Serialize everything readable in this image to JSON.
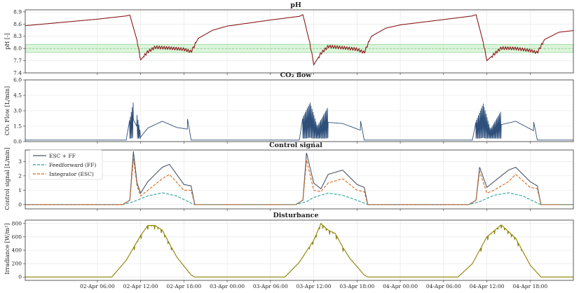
{
  "chart_data": [
    {
      "type": "line",
      "title": "pH",
      "ylabel": "pH [-]",
      "ylim": [
        7.4,
        8.95
      ],
      "yticks": [
        "7.4",
        "7.7",
        "8.0",
        "8.3",
        "8.6",
        "8.9"
      ],
      "reference_band": {
        "lower": 7.9,
        "upper": 8.1,
        "center": 8.0,
        "color": "#9be39b"
      },
      "series": [
        {
          "color": "#8b1a1a",
          "points": [
            [
              "2024-04-01 20:00",
              8.56
            ],
            [
              "2024-04-02 06:00",
              8.72
            ],
            [
              "2024-04-02 10:00",
              8.8
            ],
            [
              "2024-04-02 10:30",
              8.82
            ],
            [
              "2024-04-02 11:30",
              8.2
            ],
            [
              "2024-04-02 12:00",
              7.72
            ],
            [
              "2024-04-02 13:00",
              7.92
            ],
            [
              "2024-04-02 14:00",
              8.03
            ],
            [
              "2024-04-02 16:00",
              8.01
            ],
            [
              "2024-04-02 18:00",
              7.98
            ],
            [
              "2024-04-02 19:00",
              7.92
            ],
            [
              "2024-04-02 20:00",
              8.25
            ],
            [
              "2024-04-02 22:00",
              8.45
            ],
            [
              "2024-04-03 00:00",
              8.55
            ],
            [
              "2024-04-03 06:00",
              8.7
            ],
            [
              "2024-04-03 10:00",
              8.79
            ],
            [
              "2024-04-03 10:30",
              8.83
            ],
            [
              "2024-04-03 11:30",
              8.1
            ],
            [
              "2024-04-03 12:00",
              7.6
            ],
            [
              "2024-04-03 13:00",
              7.88
            ],
            [
              "2024-04-03 14:00",
              8.05
            ],
            [
              "2024-04-03 16:00",
              8.02
            ],
            [
              "2024-04-03 18:00",
              7.98
            ],
            [
              "2024-04-03 19:00",
              7.9
            ],
            [
              "2024-04-03 20:00",
              8.3
            ],
            [
              "2024-04-03 22:00",
              8.5
            ],
            [
              "2024-04-04 00:00",
              8.58
            ],
            [
              "2024-04-04 06:00",
              8.71
            ],
            [
              "2024-04-04 10:00",
              8.8
            ],
            [
              "2024-04-04 10:30",
              8.83
            ],
            [
              "2024-04-04 11:30",
              8.15
            ],
            [
              "2024-04-04 12:00",
              7.7
            ],
            [
              "2024-04-04 13:00",
              7.86
            ],
            [
              "2024-04-04 14:00",
              8.01
            ],
            [
              "2024-04-04 16:00",
              8.0
            ],
            [
              "2024-04-04 18:00",
              7.95
            ],
            [
              "2024-04-04 19:00",
              7.9
            ],
            [
              "2024-04-04 20:00",
              8.22
            ],
            [
              "2024-04-04 22:00",
              8.4
            ],
            [
              "2024-04-05 00:00",
              8.44
            ]
          ]
        }
      ]
    },
    {
      "type": "line",
      "title": "CO₂ flow",
      "ylabel": "CO₂ Flow [L/min]",
      "ylim": [
        0,
        6.0
      ],
      "yticks": [
        "0.0",
        "1.5",
        "3.0",
        "4.5",
        "6.0"
      ],
      "series": [
        {
          "color": "#2e4f7a",
          "points": [
            [
              "2024-04-01 20:00",
              0.15
            ],
            [
              "2024-04-02 10:00",
              0.15
            ],
            [
              "2024-04-02 10:30",
              2.2
            ],
            [
              "2024-04-02 11:00",
              3.9
            ],
            [
              "2024-04-02 11:30",
              2.6
            ],
            [
              "2024-04-02 12:00",
              0.8
            ],
            [
              "2024-04-02 13:00",
              2.4
            ],
            [
              "2024-04-02 15:00",
              3.6
            ],
            [
              "2024-04-02 17:00",
              2.5
            ],
            [
              "2024-04-02 18:30",
              2.2
            ],
            [
              "2024-04-02 19:00",
              0.15
            ],
            [
              "2024-04-03 10:00",
              0.15
            ],
            [
              "2024-04-03 10:30",
              2.4
            ],
            [
              "2024-04-03 11:30",
              3.8
            ],
            [
              "2024-04-03 12:30",
              1.5
            ],
            [
              "2024-04-03 14:00",
              3.4
            ],
            [
              "2024-04-03 16:00",
              3.2
            ],
            [
              "2024-04-03 18:30",
              2.0
            ],
            [
              "2024-04-03 19:00",
              0.15
            ],
            [
              "2024-04-04 10:00",
              0.15
            ],
            [
              "2024-04-04 10:30",
              2.0
            ],
            [
              "2024-04-04 11:30",
              3.7
            ],
            [
              "2024-04-04 12:30",
              1.2
            ],
            [
              "2024-04-04 14:00",
              3.0
            ],
            [
              "2024-04-04 16:00",
              3.6
            ],
            [
              "2024-04-04 18:30",
              1.9
            ],
            [
              "2024-04-04 19:00",
              0.15
            ],
            [
              "2024-04-05 00:00",
              0.15
            ]
          ]
        }
      ]
    },
    {
      "type": "line",
      "title": "Control signal",
      "ylabel": "Control signal [L/min]",
      "ylim": [
        -0.3,
        3.8
      ],
      "yticks": [
        "0",
        "1",
        "2",
        "3"
      ],
      "legend": "top-left",
      "series": [
        {
          "name": "ESC + FF",
          "color": "#4a5568",
          "dash": "solid",
          "points": [
            [
              "2024-04-01 20:00",
              0
            ],
            [
              "2024-04-02 09:30",
              0
            ],
            [
              "2024-04-02 10:30",
              0.3
            ],
            [
              "2024-04-02 11:00",
              3.7
            ],
            [
              "2024-04-02 11:30",
              1.5
            ],
            [
              "2024-04-02 12:00",
              0.8
            ],
            [
              "2024-04-02 13:00",
              1.6
            ],
            [
              "2024-04-02 15:00",
              2.6
            ],
            [
              "2024-04-02 16:00",
              2.8
            ],
            [
              "2024-04-02 18:00",
              1.4
            ],
            [
              "2024-04-02 19:00",
              1.3
            ],
            [
              "2024-04-02 19:30",
              0
            ],
            [
              "2024-04-03 09:30",
              0
            ],
            [
              "2024-04-03 10:30",
              0.3
            ],
            [
              "2024-04-03 11:00",
              3.6
            ],
            [
              "2024-04-03 12:00",
              1.5
            ],
            [
              "2024-04-03 13:00",
              1.1
            ],
            [
              "2024-04-03 14:00",
              2.1
            ],
            [
              "2024-04-03 16:00",
              2.4
            ],
            [
              "2024-04-03 18:00",
              1.4
            ],
            [
              "2024-04-03 19:00",
              1.2
            ],
            [
              "2024-04-03 19:30",
              0
            ],
            [
              "2024-04-04 09:30",
              0
            ],
            [
              "2024-04-04 10:30",
              0.3
            ],
            [
              "2024-04-04 11:00",
              2.6
            ],
            [
              "2024-04-04 12:00",
              1.2
            ],
            [
              "2024-04-04 13:00",
              1.6
            ],
            [
              "2024-04-04 15:00",
              2.4
            ],
            [
              "2024-04-04 16:00",
              2.6
            ],
            [
              "2024-04-04 18:00",
              1.6
            ],
            [
              "2024-04-04 19:00",
              1.3
            ],
            [
              "2024-04-04 19:30",
              0
            ],
            [
              "2024-04-05 00:00",
              0
            ]
          ]
        },
        {
          "name": "Feedforward (FF)",
          "color": "#2aa198",
          "dash": "dashed",
          "points": [
            [
              "2024-04-01 20:00",
              0
            ],
            [
              "2024-04-02 09:30",
              0
            ],
            [
              "2024-04-02 11:00",
              0.2
            ],
            [
              "2024-04-02 13:00",
              0.6
            ],
            [
              "2024-04-02 15:00",
              0.82
            ],
            [
              "2024-04-02 17:00",
              0.6
            ],
            [
              "2024-04-02 19:00",
              0.1
            ],
            [
              "2024-04-02 19:30",
              0
            ],
            [
              "2024-04-03 09:30",
              0
            ],
            [
              "2024-04-03 11:00",
              0.2
            ],
            [
              "2024-04-03 12:00",
              0.5
            ],
            [
              "2024-04-03 14:00",
              0.8
            ],
            [
              "2024-04-03 16:00",
              0.65
            ],
            [
              "2024-04-03 18:00",
              0.3
            ],
            [
              "2024-04-03 19:30",
              0
            ],
            [
              "2024-04-04 09:30",
              0
            ],
            [
              "2024-04-04 11:00",
              0.2
            ],
            [
              "2024-04-04 13:00",
              0.65
            ],
            [
              "2024-04-04 15:00",
              0.82
            ],
            [
              "2024-04-04 17:00",
              0.6
            ],
            [
              "2024-04-04 19:00",
              0.1
            ],
            [
              "2024-04-04 19:30",
              0
            ],
            [
              "2024-04-05 00:00",
              0
            ]
          ]
        },
        {
          "name": "Integrator (ESC)",
          "color": "#d2691e",
          "dash": "dashed",
          "points": [
            [
              "2024-04-01 20:00",
              0
            ],
            [
              "2024-04-02 09:30",
              0
            ],
            [
              "2024-04-02 10:30",
              0.3
            ],
            [
              "2024-04-02 11:00",
              3.2
            ],
            [
              "2024-04-02 11:30",
              1.3
            ],
            [
              "2024-04-02 12:00",
              0.6
            ],
            [
              "2024-04-02 13:00",
              1.0
            ],
            [
              "2024-04-02 15:00",
              1.8
            ],
            [
              "2024-04-02 16:00",
              2.1
            ],
            [
              "2024-04-02 18:00",
              1.0
            ],
            [
              "2024-04-02 19:00",
              1.0
            ],
            [
              "2024-04-02 19:30",
              0
            ],
            [
              "2024-04-03 09:30",
              0
            ],
            [
              "2024-04-03 10:30",
              0.3
            ],
            [
              "2024-04-03 11:00",
              3.1
            ],
            [
              "2024-04-03 12:00",
              1.0
            ],
            [
              "2024-04-03 13:00",
              0.9
            ],
            [
              "2024-04-03 14:00",
              1.5
            ],
            [
              "2024-04-03 16:00",
              1.8
            ],
            [
              "2024-04-03 18:00",
              1.0
            ],
            [
              "2024-04-03 19:00",
              0.9
            ],
            [
              "2024-04-03 19:30",
              0
            ],
            [
              "2024-04-04 09:30",
              0
            ],
            [
              "2024-04-04 10:30",
              0.3
            ],
            [
              "2024-04-04 11:00",
              2.3
            ],
            [
              "2024-04-04 12:00",
              0.8
            ],
            [
              "2024-04-04 13:00",
              1.0
            ],
            [
              "2024-04-04 15:00",
              1.6
            ],
            [
              "2024-04-04 16:00",
              2.1
            ],
            [
              "2024-04-04 18:00",
              1.2
            ],
            [
              "2024-04-04 19:00",
              1.1
            ],
            [
              "2024-04-04 19:30",
              0
            ],
            [
              "2024-04-05 00:00",
              0
            ]
          ]
        }
      ]
    },
    {
      "type": "line",
      "title": "Disturbance",
      "ylabel": "Irradiance [W/m²]",
      "ylim": [
        -50,
        850
      ],
      "yticks": [
        "0",
        "200",
        "400",
        "600",
        "800"
      ],
      "xticks": [
        "02-Apr 06:00",
        "02-Apr 12:00",
        "02-Apr 18:00",
        "03-Apr 00:00",
        "03-Apr 06:00",
        "03-Apr 12:00",
        "03-Apr 18:00",
        "04-Apr 00:00",
        "04-Apr 06:00",
        "04-Apr 12:00",
        "04-Apr 18:00"
      ],
      "series": [
        {
          "color": "#8b8000",
          "points": [
            [
              "2024-04-01 20:00",
              0
            ],
            [
              "2024-04-02 08:00",
              0
            ],
            [
              "2024-04-02 10:00",
              250
            ],
            [
              "2024-04-02 12:00",
              620
            ],
            [
              "2024-04-02 13:00",
              770
            ],
            [
              "2024-04-02 14:00",
              770
            ],
            [
              "2024-04-02 15:00",
              700
            ],
            [
              "2024-04-02 16:00",
              500
            ],
            [
              "2024-04-02 17:00",
              300
            ],
            [
              "2024-04-02 19:00",
              30
            ],
            [
              "2024-04-02 19:30",
              0
            ],
            [
              "2024-04-03 08:00",
              0
            ],
            [
              "2024-04-03 10:00",
              220
            ],
            [
              "2024-04-03 12:00",
              550
            ],
            [
              "2024-04-03 13:00",
              800
            ],
            [
              "2024-04-03 14:00",
              700
            ],
            [
              "2024-04-03 15:00",
              650
            ],
            [
              "2024-04-03 16:00",
              450
            ],
            [
              "2024-04-03 17:00",
              280
            ],
            [
              "2024-04-03 19:00",
              30
            ],
            [
              "2024-04-03 19:30",
              0
            ],
            [
              "2024-04-04 08:00",
              0
            ],
            [
              "2024-04-04 10:00",
              200
            ],
            [
              "2024-04-04 12:00",
              600
            ],
            [
              "2024-04-04 14:00",
              780
            ],
            [
              "2024-04-04 16:00",
              580
            ],
            [
              "2024-04-04 18:00",
              180
            ],
            [
              "2024-04-04 19:30",
              0
            ],
            [
              "2024-04-05 00:00",
              0
            ]
          ]
        }
      ]
    }
  ]
}
